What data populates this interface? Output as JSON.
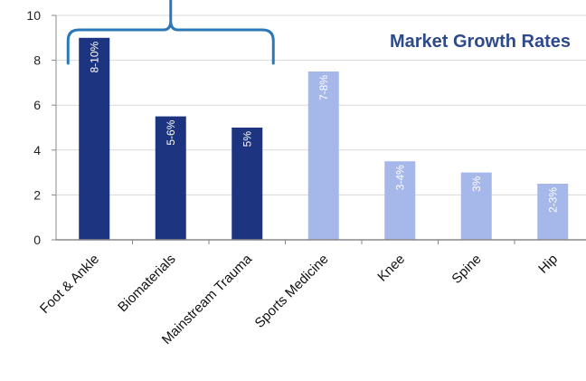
{
  "chart_data": {
    "type": "bar",
    "title": "Market Growth Rates",
    "xlabel": "",
    "ylabel": "",
    "ylim": [
      0,
      10
    ],
    "yticks": [
      0,
      2,
      4,
      6,
      8,
      10
    ],
    "grid": true,
    "categories": [
      "Foot & Ankle",
      "Biomaterials",
      "Mainstream Trauma",
      "Sports Medicine",
      "Knee",
      "Spine",
      "Hip"
    ],
    "values": [
      9,
      5.5,
      5,
      7.5,
      3.5,
      3,
      2.5
    ],
    "data_labels": [
      "8-10%",
      "5-6%",
      "5%",
      "7-8%",
      "3-4%",
      "3%",
      "2-3%"
    ],
    "highlighted_group": [
      "Foot & Ankle",
      "Biomaterials",
      "Mainstream Trauma"
    ],
    "colors": {
      "highlighted": "#1d3480",
      "other": "#a6b8ea",
      "bracket": "#2a78b8",
      "title": "#2e4a8a",
      "grid": "#d9d9d9",
      "axis": "#888888"
    }
  }
}
